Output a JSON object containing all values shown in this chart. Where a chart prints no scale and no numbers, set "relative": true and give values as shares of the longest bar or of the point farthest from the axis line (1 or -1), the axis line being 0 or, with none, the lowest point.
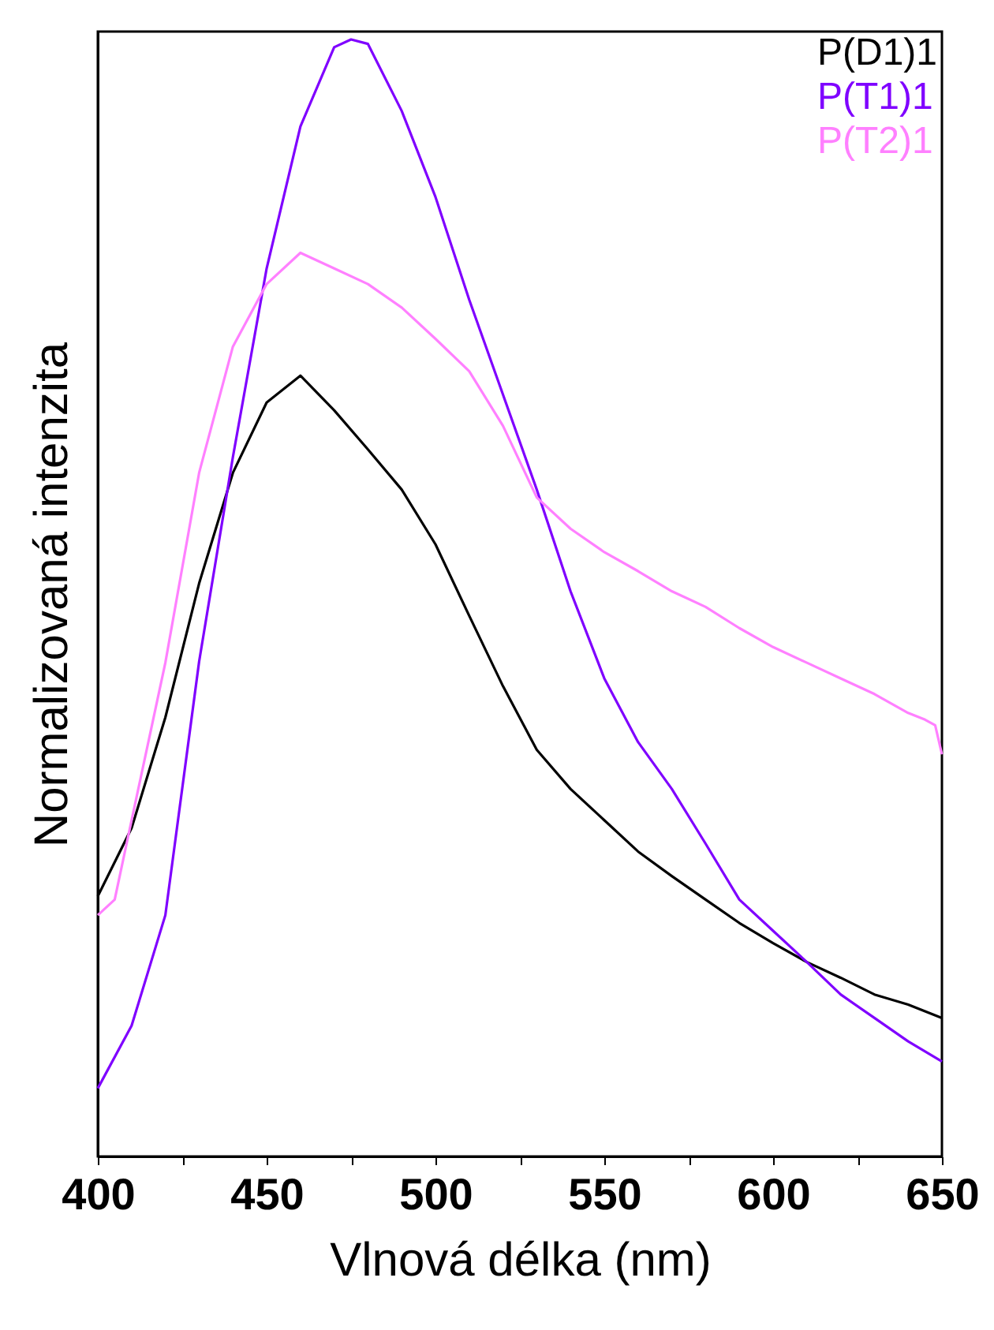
{
  "chart_data": {
    "type": "line",
    "xlabel": "Vlnová délka (nm)",
    "ylabel": "Normalizovaná intenzita",
    "relative": true,
    "legend": "top right",
    "xlim": [
      400,
      650
    ],
    "xticks": [
      400,
      {
        "value": 425,
        "label": null
      },
      450,
      {
        "value": 475,
        "label": null
      },
      500,
      {
        "value": 525,
        "label": null
      },
      550,
      {
        "value": 575,
        "label": null
      },
      600,
      {
        "value": 625,
        "label": null
      },
      650
    ],
    "series": [
      {
        "name": "P(D1)1",
        "color": "#000000",
        "x": [
          400,
          410,
          420,
          430,
          440,
          450,
          460,
          470,
          480,
          490,
          500,
          510,
          520,
          530,
          540,
          550,
          560,
          570,
          580,
          590,
          600,
          610,
          620,
          630,
          640,
          650
        ],
        "values": [
          0.233,
          0.294,
          0.393,
          0.513,
          0.612,
          0.675,
          0.699,
          0.668,
          0.633,
          0.597,
          0.548,
          0.484,
          0.421,
          0.364,
          0.329,
          0.301,
          0.273,
          0.251,
          0.23,
          0.209,
          0.191,
          0.174,
          0.16,
          0.145,
          0.136,
          0.124
        ]
      },
      {
        "name": "P(T1)1",
        "color": "#7f00ff",
        "x": [
          400,
          410,
          420,
          430,
          440,
          450,
          460,
          470,
          475,
          480,
          490,
          500,
          510,
          520,
          530,
          540,
          550,
          560,
          570,
          580,
          590,
          600,
          610,
          620,
          630,
          640,
          650
        ],
        "values": [
          0.061,
          0.117,
          0.216,
          0.443,
          0.626,
          0.795,
          0.922,
          0.993,
          1.0,
          0.996,
          0.936,
          0.859,
          0.767,
          0.682,
          0.597,
          0.506,
          0.428,
          0.371,
          0.329,
          0.28,
          0.23,
          0.202,
          0.174,
          0.145,
          0.124,
          0.103,
          0.085
        ]
      },
      {
        "name": "P(T2)1",
        "color": "#ff80ff",
        "x": [
          400,
          405,
          410,
          420,
          430,
          440,
          450,
          460,
          470,
          480,
          490,
          500,
          510,
          520,
          530,
          540,
          550,
          560,
          570,
          580,
          590,
          600,
          610,
          620,
          630,
          640,
          645,
          648,
          650
        ],
        "values": [
          0.216,
          0.23,
          0.301,
          0.442,
          0.612,
          0.725,
          0.781,
          0.809,
          0.795,
          0.781,
          0.76,
          0.732,
          0.703,
          0.654,
          0.59,
          0.562,
          0.541,
          0.524,
          0.506,
          0.492,
          0.473,
          0.456,
          0.442,
          0.428,
          0.414,
          0.397,
          0.391,
          0.386,
          0.36
        ]
      }
    ]
  }
}
